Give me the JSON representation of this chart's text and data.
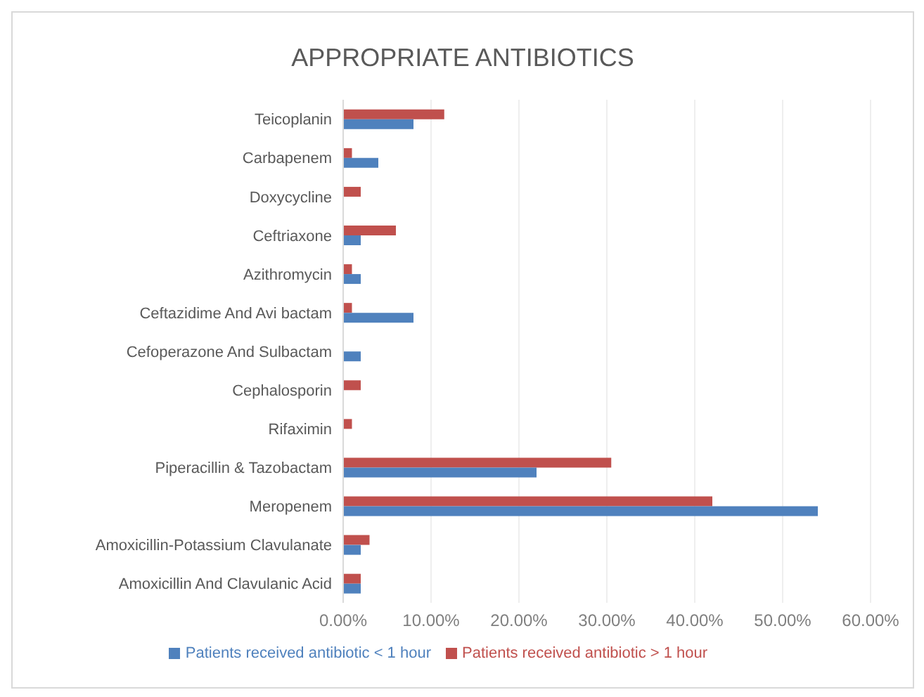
{
  "chart_data": {
    "type": "bar",
    "orientation": "horizontal",
    "title": "APPROPRIATE ANTIBIOTICS",
    "categories": [
      "Teicoplanin",
      "Carbapenem",
      "Doxycycline",
      "Ceftriaxone",
      "Azithromycin",
      "Ceftazidime And Avi bactam",
      "Cefoperazone And Sulbactam",
      "Cephalosporin",
      "Rifaximin",
      "Piperacillin & Tazobactam",
      "Meropenem",
      "Amoxicillin-Potassium Clavulanate",
      "Amoxicillin And Clavulanic Acid"
    ],
    "series": [
      {
        "name": "Patients received antibiotic > 1 hour",
        "color": "#c0504d",
        "values": [
          11.5,
          1,
          2,
          6,
          1,
          1,
          null,
          2,
          1,
          30.5,
          42,
          3,
          2
        ]
      },
      {
        "name": "Patients received antibiotic < 1 hour",
        "color": "#4f81bd",
        "values": [
          8,
          4,
          null,
          2,
          2,
          8,
          2,
          null,
          null,
          22,
          54,
          2,
          2
        ]
      }
    ],
    "xlim": [
      0,
      60
    ],
    "xticks": [
      {
        "value": 0,
        "label": "0.00%"
      },
      {
        "value": 10,
        "label": "10.00%"
      },
      {
        "value": 20,
        "label": "20.00%"
      },
      {
        "value": 30,
        "label": "30.00%"
      },
      {
        "value": 40,
        "label": "40.00%"
      },
      {
        "value": 50,
        "label": "50.00%"
      },
      {
        "value": 60,
        "label": "60.00%"
      }
    ],
    "grid": "x",
    "legend": "bottom"
  }
}
